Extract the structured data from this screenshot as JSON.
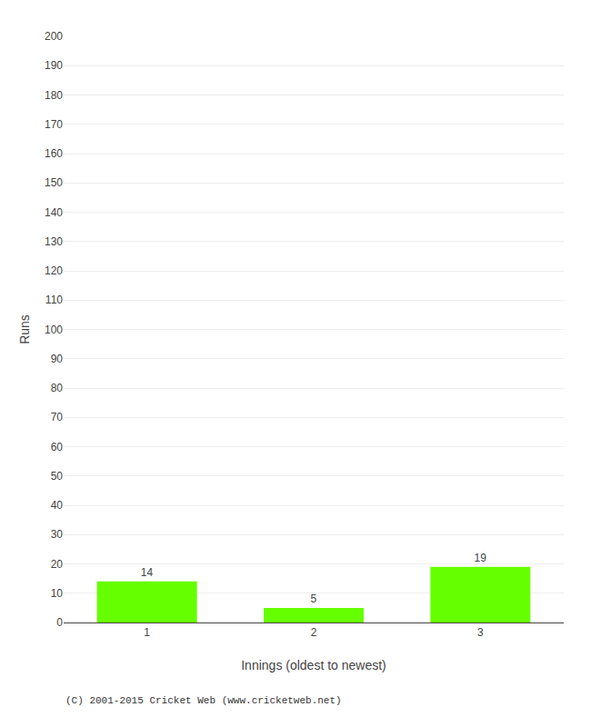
{
  "chart_data": {
    "type": "bar",
    "xlabel": "Innings (oldest to newest)",
    "ylabel": "Runs",
    "categories": [
      "1",
      "2",
      "3"
    ],
    "values": [
      14,
      5,
      19
    ],
    "color": "#66ff00",
    "ylim": [
      0,
      200
    ],
    "yticks": [
      0,
      10,
      20,
      30,
      40,
      50,
      60,
      70,
      80,
      90,
      100,
      110,
      120,
      130,
      140,
      150,
      160,
      170,
      180,
      190,
      200
    ],
    "grid": true,
    "data_labels": true,
    "annotations": [
      "(C) 2001-2015 Cricket Web (www.cricketweb.net)"
    ]
  }
}
